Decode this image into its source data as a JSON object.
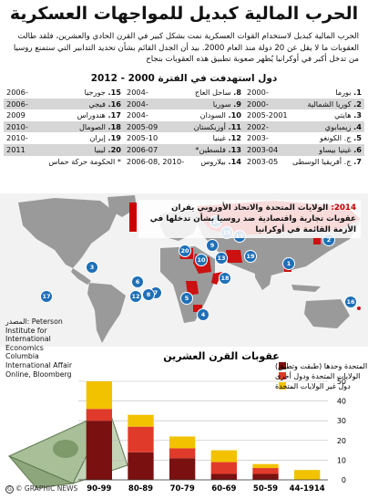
{
  "title": "الحرب المالية كبديل للمواجهات العسكرية",
  "intro": "الحرب المالية كبديل لاستخدام القوات العسكرية نمت بشكل كبير في القرن الحادي والعشرين، فلقد طالت العقوبات ما لا يقل عن 20 دولة منذ العام 2000. بيد أن الجدل القائم بشأن تحديد التدابير التي ستمنع روسيا من تدخل أكبر في أوكرانيا يُظهر صعوبة تطبيق هذه العقوبات بنجاح",
  "subtitle": "دول استهدفت في الفترة 2000 - 2012",
  "sanctions_table": [
    [
      {
        "num": "1.",
        "country": "بورما",
        "years": "2000-"
      },
      {
        "num": "8.",
        "country": "ساحل العاج",
        "years": "2004-"
      },
      {
        "num": "15.",
        "country": "جورجيا",
        "years": "2006-"
      }
    ],
    [
      {
        "num": "2.",
        "country": "كوريا الشمالية",
        "years": "2000-"
      },
      {
        "num": "9.",
        "country": "سوريا",
        "years": "2004-"
      },
      {
        "num": "16.",
        "country": "فيجي",
        "years": "2006-"
      }
    ],
    [
      {
        "num": "3.",
        "country": "هايتي",
        "years": "2005-2001"
      },
      {
        "num": "10.",
        "country": "السودان",
        "years": "2004-"
      },
      {
        "num": "17.",
        "country": "هندوراس",
        "years": "2009"
      }
    ],
    [
      {
        "num": "4.",
        "country": "زيمبابوي",
        "years": "2002-"
      },
      {
        "num": "11.",
        "country": "أوزبكستان",
        "years": "2005-09"
      },
      {
        "num": "18.",
        "country": "الصومال",
        "years": "2010-"
      }
    ],
    [
      {
        "num": "5.",
        "country": "ج. الكونغو",
        "years": "2003-"
      },
      {
        "num": "12.",
        "country": "غينيا",
        "years": "2005-10"
      },
      {
        "num": "19.",
        "country": "إيران",
        "years": "2010-"
      }
    ],
    [
      {
        "num": "6.",
        "country": "غينيا بيساو",
        "years": "2003-04"
      },
      {
        "num": "13.",
        "country": "فلسطين*",
        "years": "2006-07"
      },
      {
        "num": "20.",
        "country": "ليبيا",
        "years": "2011"
      }
    ],
    [
      {
        "num": "7.",
        "country": "ج. أفريقيا الوسطى",
        "years": "2003-05"
      },
      {
        "num": "14.",
        "country": "بيلاروس",
        "years": "2006-08, 2010-"
      },
      {
        "num": "",
        "country": "* الحكومة حركة حماس",
        "years": ""
      }
    ]
  ],
  "callout": {
    "year": "2014:",
    "text": "الولايات المتحدة والاتحاد الأوروبي يقران عقوبات تجارية واقتصادية ضد روسيا بشأن تدخلها في الأزمة القائمة في أوكرانيا"
  },
  "map_markers": [
    "1",
    "2",
    "3",
    "4",
    "5",
    "6",
    "7",
    "8",
    "9",
    "10",
    "11",
    "12",
    "13",
    "14",
    "15",
    "16",
    "17",
    "18",
    "19",
    "20"
  ],
  "sources": "المصدر: Peterson Institute for International Economics Columbia International Affair Online, Bloomberg",
  "footer": "© GRAPHIC NEWS",
  "colors": {
    "us_alone": "#7a1010",
    "us_plus": "#e03a2a",
    "non_us": "#f2c200",
    "map_land": "#9a9a9a",
    "map_sanctioned": "#cc1111",
    "marker": "#1e6fb7"
  },
  "chart_data": {
    "type": "bar",
    "title": "عقوبات القرن العشرين",
    "categories": [
      "44-1914",
      "50-59",
      "60-69",
      "70-79",
      "80-89",
      "90-99"
    ],
    "series": [
      {
        "name": "الولايات المتحدة وحدها (طبقت وتطبق)",
        "values": [
          0,
          3,
          3,
          11,
          14,
          30
        ],
        "color": "#7a1010"
      },
      {
        "name": "الولايات المتحدة ودول أخرى",
        "values": [
          0,
          3,
          6,
          5,
          13,
          6
        ],
        "color": "#e03a2a"
      },
      {
        "name": "دول غير الولايات المتحدة",
        "values": [
          5,
          2,
          6,
          6,
          6,
          14
        ],
        "color": "#f2c200"
      }
    ],
    "yticks": [
      0,
      10,
      20,
      30,
      40,
      50
    ],
    "ylim": [
      0,
      50
    ]
  }
}
